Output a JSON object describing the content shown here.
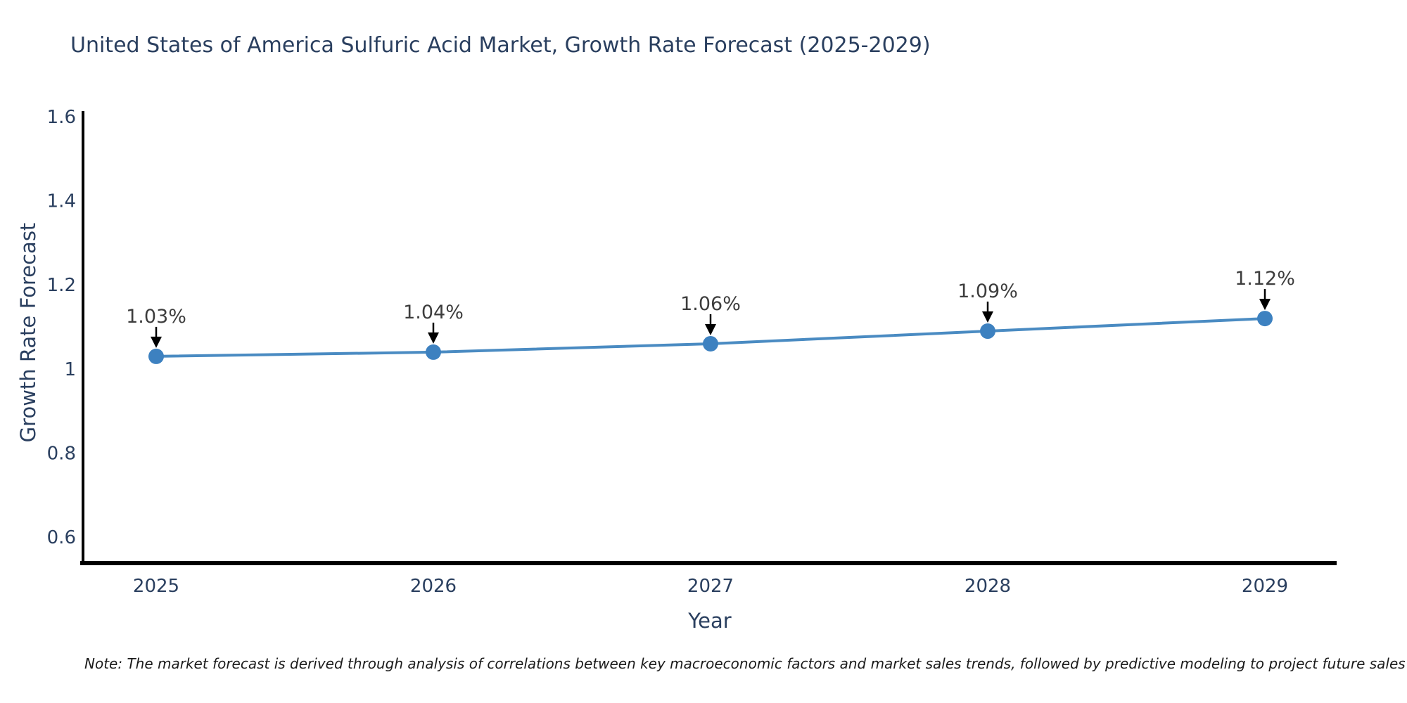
{
  "title": "United States of America Sulfuric Acid Market, Growth Rate Forecast (2025-2029)",
  "note": "Note: The market forecast is derived through analysis of correlations between key macroeconomic factors and market sales trends, followed by predictive modeling to project future sales",
  "chart_data": {
    "type": "line",
    "title": "United States of America Sulfuric Acid Market, Growth Rate Forecast (2025-2029)",
    "xlabel": "Year",
    "ylabel": "Growth Rate Forecast",
    "categories": [
      "2025",
      "2026",
      "2027",
      "2028",
      "2029"
    ],
    "values": [
      1.03,
      1.04,
      1.06,
      1.09,
      1.12
    ],
    "point_labels": [
      "1.03%",
      "1.04%",
      "1.06%",
      "1.09%",
      "1.12%"
    ],
    "ytick_values": [
      0.6,
      0.8,
      1,
      1.2,
      1.4,
      1.6
    ],
    "ytick_labels": [
      "0.6",
      "0.8",
      "1",
      "1.2",
      "1.4",
      "1.6"
    ],
    "ylim": [
      0.54,
      1.61
    ],
    "grid": false,
    "legend": "none",
    "marker_style": "circle",
    "annotation_arrows": true,
    "colors": {
      "line": "#4a8bc2",
      "marker": "#3d81c0",
      "arrow": "#000000",
      "axis_line": "#000000",
      "axis_text": "#2a3f5f",
      "annotation_text": "#3d3d3d",
      "title_text": "#2a3f5f",
      "background": "#ffffff"
    }
  }
}
